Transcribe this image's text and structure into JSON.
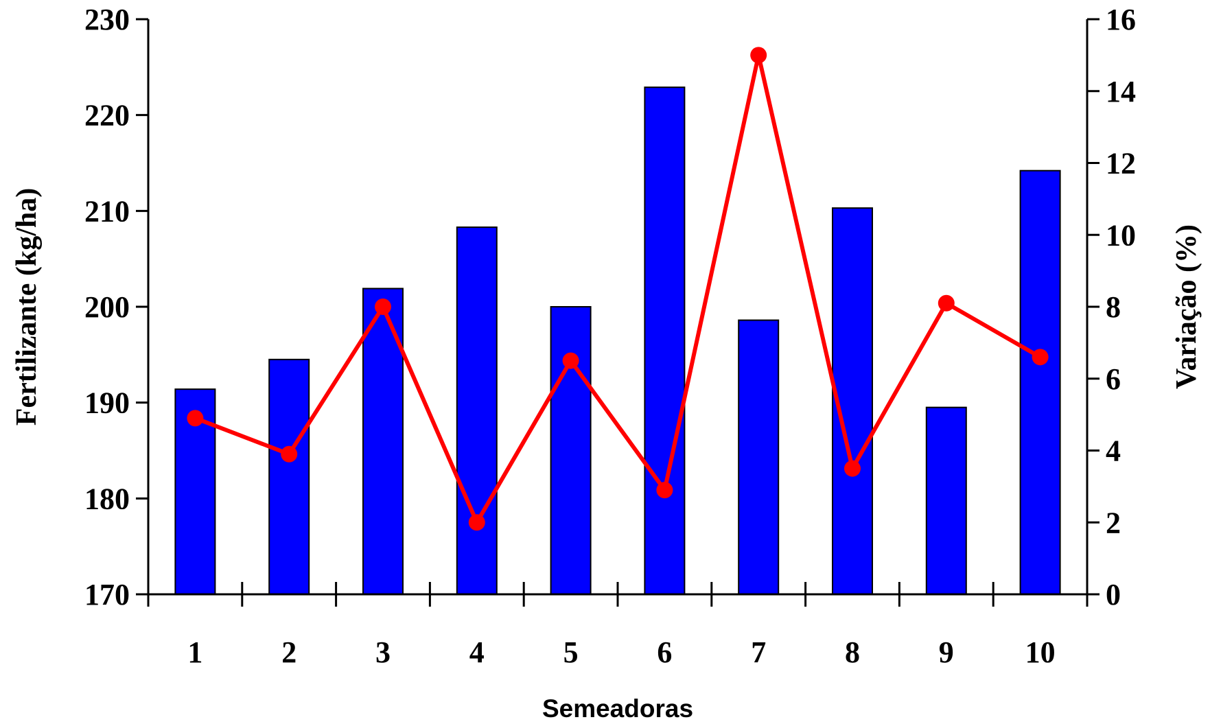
{
  "chart_data": {
    "type": "bar",
    "categories": [
      "1",
      "2",
      "3",
      "4",
      "5",
      "6",
      "7",
      "8",
      "9",
      "10"
    ],
    "xlabel": "Semeadoras",
    "series": [
      {
        "type": "bar",
        "axis": "left",
        "values": [
          191.4,
          194.5,
          201.9,
          208.3,
          200.0,
          222.9,
          198.6,
          210.3,
          189.5,
          214.2
        ]
      },
      {
        "type": "line",
        "axis": "right",
        "values": [
          4.9,
          3.9,
          8.0,
          2.0,
          6.5,
          2.9,
          15.0,
          3.5,
          8.1,
          6.6
        ]
      }
    ],
    "y_left": {
      "label": "Fertilizante (kg/ha)",
      "ylim": [
        170,
        230
      ],
      "ticks": [
        "230",
        "220",
        "210",
        "200",
        "190",
        "180",
        "170"
      ]
    },
    "y_right": {
      "label": "Variação (%)",
      "ylim": [
        0,
        16
      ],
      "ticks": [
        "16",
        "14",
        "12",
        "10",
        "8",
        "6",
        "4",
        "2",
        "0"
      ]
    },
    "grid": false,
    "legend": "none",
    "colors": {
      "bar": "#0000FF",
      "line": "#FF0000"
    }
  }
}
